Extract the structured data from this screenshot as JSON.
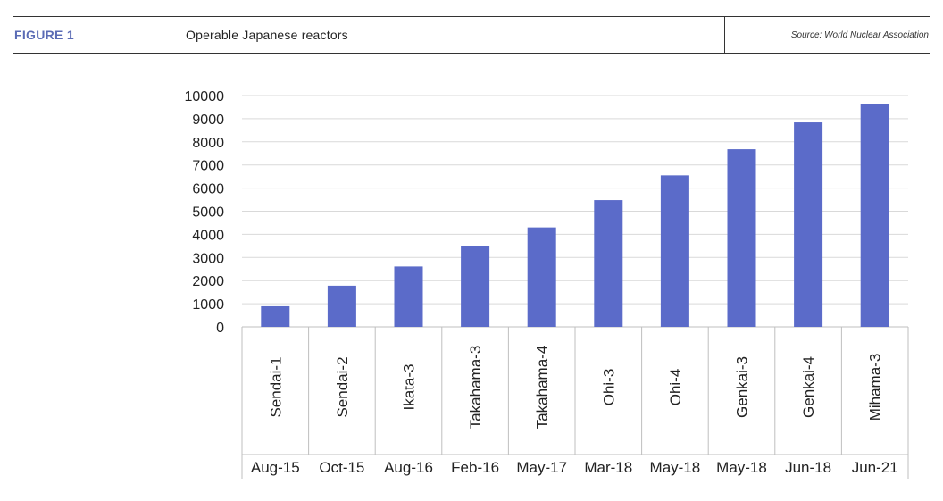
{
  "header": {
    "figure_label": "FIGURE 1",
    "title": "Operable Japanese reactors",
    "source": "Source: World Nuclear Association"
  },
  "chart_data": {
    "type": "bar",
    "title": "Operable Japanese reactors",
    "xlabel": "",
    "ylabel": "",
    "categories": [
      "Sendai-1",
      "Sendai-2",
      "Ikata-3",
      "Takahama-3",
      "Takahama-4",
      "Ohi-3",
      "Ohi-4",
      "Genkai-3",
      "Genkai-4",
      "Mihama-3"
    ],
    "dates": [
      "Aug-15",
      "Oct-15",
      "Aug-16",
      "Feb-16",
      "May-17",
      "Mar-18",
      "May-18",
      "May-18",
      "Jun-18",
      "Jun-21"
    ],
    "values": [
      890,
      1780,
      2610,
      3480,
      4300,
      5480,
      6550,
      7680,
      8840,
      9620
    ],
    "ylim": [
      0,
      10000
    ],
    "yticks": [
      0,
      1000,
      2000,
      3000,
      4000,
      5000,
      6000,
      7000,
      8000,
      9000,
      10000
    ],
    "grid": true,
    "bar_color": "#5b6bc9"
  }
}
